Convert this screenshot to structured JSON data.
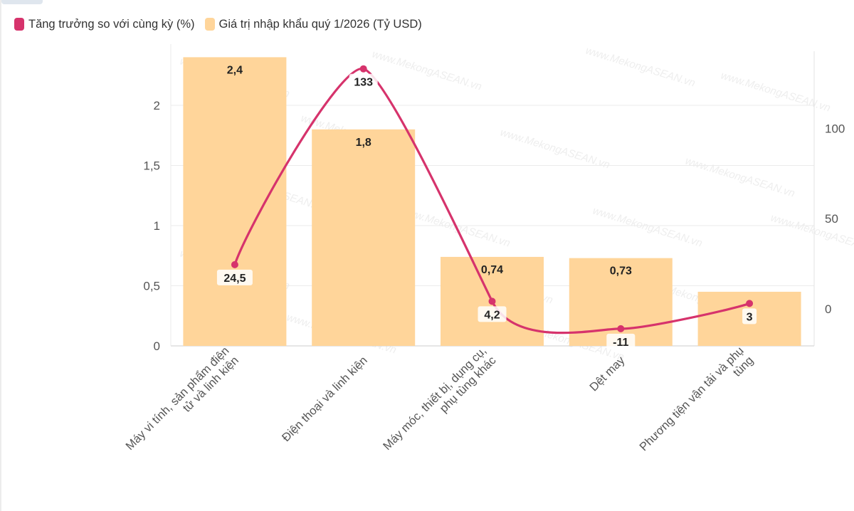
{
  "chart_data": {
    "type": "bar",
    "categories": [
      "Máy vi tính, sản phẩm điện tử và linh kiện",
      "Điện thoại và linh kiện",
      "Máy móc, thiết bị, dụng cụ, phụ tùng khác",
      "Dệt may",
      "Phương tiện vận tải và phụ tùng"
    ],
    "category_label_lines": [
      [
        "Máy vi tính, sản phẩm điện",
        "tử và linh kiện"
      ],
      [
        "Điện thoại và linh kiện"
      ],
      [
        "Máy móc, thiết bị, dụng cụ,",
        "phụ tùng khác"
      ],
      [
        "Dệt may"
      ],
      [
        "Phương tiện vận tải và phụ",
        "tùng"
      ]
    ],
    "series": [
      {
        "name": "Giá trị nhập khẩu quý 1/2026 (Tỷ USD)",
        "type": "bar",
        "axis": "left",
        "color": "#ffd59a",
        "values": [
          2.4,
          1.8,
          0.74,
          0.73,
          0.45
        ],
        "labels": [
          "2,4",
          "1,8",
          "0,74",
          "0,73",
          ""
        ]
      },
      {
        "name": "Tăng trưởng so với cùng kỳ (%)",
        "type": "line",
        "axis": "right",
        "color": "#d6336c",
        "values": [
          24.5,
          133,
          4.2,
          -11,
          3
        ],
        "labels": [
          "24,5",
          "133",
          "4,2",
          "-11",
          "3"
        ]
      }
    ],
    "left_axis": {
      "min": 0,
      "max": 2.4,
      "ticks": [
        0,
        0.5,
        1,
        1.5,
        2
      ],
      "tick_labels": [
        "0",
        "0,5",
        "1",
        "1,5",
        "2"
      ]
    },
    "right_axis": {
      "min": -20,
      "max": 140,
      "ticks": [
        0,
        50,
        100
      ],
      "tick_labels": [
        "0",
        "50",
        "100"
      ]
    },
    "grid": true,
    "legend_position": "top-left",
    "watermark": "www.MekongASEAN.vn"
  }
}
